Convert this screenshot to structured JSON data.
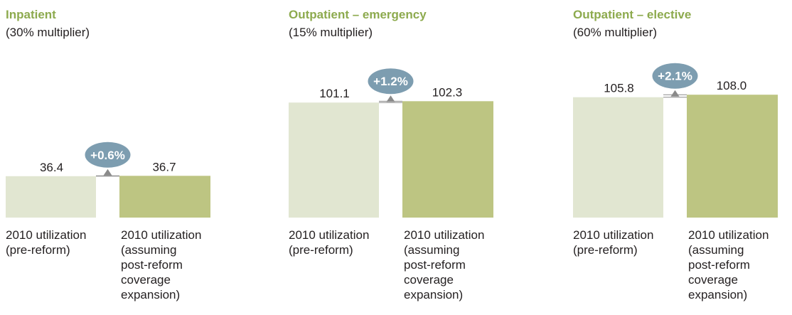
{
  "colors": {
    "title": "#8daa4e",
    "pre_bar": "#e1e6d1",
    "post_bar": "#bdc582",
    "bubble": "#7d9db0",
    "bubble_text": "#ffffff",
    "arrow": "#8a8a8a",
    "text": "#231f20"
  },
  "chart_data": [
    {
      "type": "bar",
      "title": "Inpatient",
      "subtitle": "(30% multiplier)",
      "categories": [
        "2010 utilization\n(pre-reform)",
        "2010 utilization\n(assuming\npost-reform\ncoverage\nexpansion)"
      ],
      "values": [
        36.4,
        36.7
      ],
      "value_labels": [
        "36.4",
        "36.7"
      ],
      "change_label": "+0.6%"
    },
    {
      "type": "bar",
      "title": "Outpatient – emergency",
      "subtitle": "(15% multiplier)",
      "categories": [
        "2010 utilization\n(pre-reform)",
        "2010 utilization\n(assuming\npost-reform\ncoverage\nexpansion)"
      ],
      "values": [
        101.1,
        102.3
      ],
      "value_labels": [
        "101.1",
        "102.3"
      ],
      "change_label": "+1.2%"
    },
    {
      "type": "bar",
      "title": "Outpatient – elective",
      "subtitle": "(60% multiplier)",
      "categories": [
        "2010 utilization\n(pre-reform)",
        "2010 utilization\n(assuming\npost-reform\ncoverage\nexpansion)"
      ],
      "values": [
        105.8,
        108.0
      ],
      "value_labels": [
        "105.8",
        "108.0"
      ],
      "change_label": "+2.1%"
    }
  ]
}
